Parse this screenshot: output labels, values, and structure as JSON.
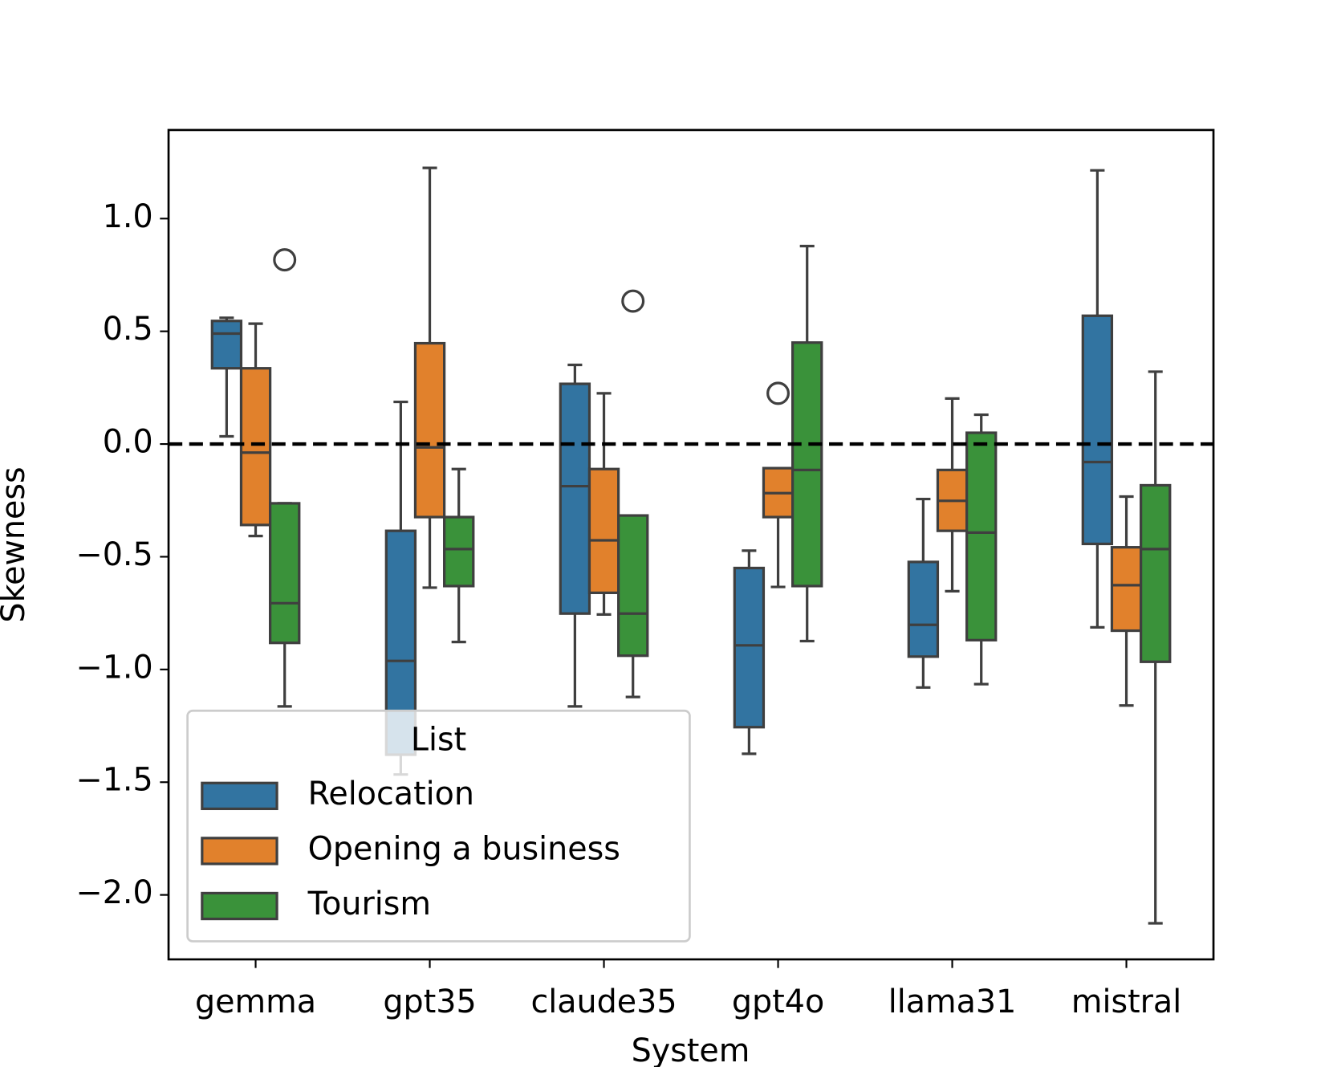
{
  "chart_data": {
    "type": "box",
    "x_label": "System",
    "y_label": "Skewness",
    "categories": [
      "gemma",
      "gpt35",
      "claude35",
      "gpt4o",
      "llama31",
      "mistral"
    ],
    "ylim": [
      -2.286,
      1.393
    ],
    "yticks": [
      {
        "value": -2.0,
        "label": "−2.0"
      },
      {
        "value": -1.5,
        "label": "−1.5"
      },
      {
        "value": -1.0,
        "label": "−1.0"
      },
      {
        "value": -0.5,
        "label": "−0.5"
      },
      {
        "value": 0.0,
        "label": "0.0"
      },
      {
        "value": 0.5,
        "label": "0.5"
      },
      {
        "value": 1.0,
        "label": "1.0"
      }
    ],
    "hline": 0,
    "legend_title": "List",
    "legend_loc": "lower left",
    "series": [
      {
        "name": "Relocation",
        "color": "#3274a1",
        "boxes": [
          {
            "whislo": 0.034,
            "q1": 0.336,
            "med": 0.49,
            "q3": 0.546,
            "whishi": 0.56,
            "fliers": []
          },
          {
            "whislo": -1.466,
            "q1": -1.378,
            "med": -0.962,
            "q3": -0.385,
            "whishi": 0.187,
            "fliers": []
          },
          {
            "whislo": -1.164,
            "q1": -0.752,
            "med": -0.187,
            "q3": 0.267,
            "whishi": 0.351,
            "fliers": []
          },
          {
            "whislo": -1.374,
            "q1": -1.256,
            "med": -0.893,
            "q3": -0.55,
            "whishi": -0.473,
            "fliers": []
          },
          {
            "whislo": -1.08,
            "q1": -0.943,
            "med": -0.802,
            "q3": -0.523,
            "whishi": -0.244,
            "fliers": []
          },
          {
            "whislo": -0.813,
            "q1": -0.443,
            "med": -0.08,
            "q3": 0.569,
            "whishi": 1.214,
            "fliers": []
          }
        ]
      },
      {
        "name": "Opening a business",
        "color": "#e1812c",
        "boxes": [
          {
            "whislo": -0.408,
            "q1": -0.359,
            "med": -0.038,
            "q3": 0.336,
            "whishi": 0.534,
            "fliers": []
          },
          {
            "whislo": -0.637,
            "q1": -0.324,
            "med": -0.015,
            "q3": 0.447,
            "whishi": 1.225,
            "fliers": []
          },
          {
            "whislo": -0.756,
            "q1": -0.66,
            "med": -0.427,
            "q3": -0.111,
            "whishi": 0.225,
            "fliers": []
          },
          {
            "whislo": -0.634,
            "q1": -0.324,
            "med": -0.218,
            "q3": -0.107,
            "whishi": -0.107,
            "fliers": [
              0.225
            ]
          },
          {
            "whislo": -0.653,
            "q1": -0.385,
            "med": -0.252,
            "q3": -0.115,
            "whishi": 0.202,
            "fliers": []
          },
          {
            "whislo": -1.16,
            "q1": -0.828,
            "med": -0.626,
            "q3": -0.458,
            "whishi": -0.233,
            "fliers": []
          }
        ]
      },
      {
        "name": "Tourism",
        "color": "#3a923a",
        "boxes": [
          {
            "whislo": -1.164,
            "q1": -0.882,
            "med": -0.706,
            "q3": -0.263,
            "whishi": -0.263,
            "fliers": [
              0.817
            ]
          },
          {
            "whislo": -0.878,
            "q1": -0.63,
            "med": -0.466,
            "q3": -0.324,
            "whishi": -0.111,
            "fliers": []
          },
          {
            "whislo": -1.122,
            "q1": -0.939,
            "med": -0.752,
            "q3": -0.317,
            "whishi": -0.317,
            "fliers": [
              0.634
            ]
          },
          {
            "whislo": -0.874,
            "q1": -0.63,
            "med": -0.115,
            "q3": 0.45,
            "whishi": 0.878,
            "fliers": []
          },
          {
            "whislo": -1.065,
            "q1": -0.87,
            "med": -0.393,
            "q3": 0.05,
            "whishi": 0.13,
            "fliers": []
          },
          {
            "whislo": -2.126,
            "q1": -0.966,
            "med": -0.466,
            "q3": -0.183,
            "whishi": 0.321,
            "fliers": []
          }
        ]
      }
    ]
  }
}
